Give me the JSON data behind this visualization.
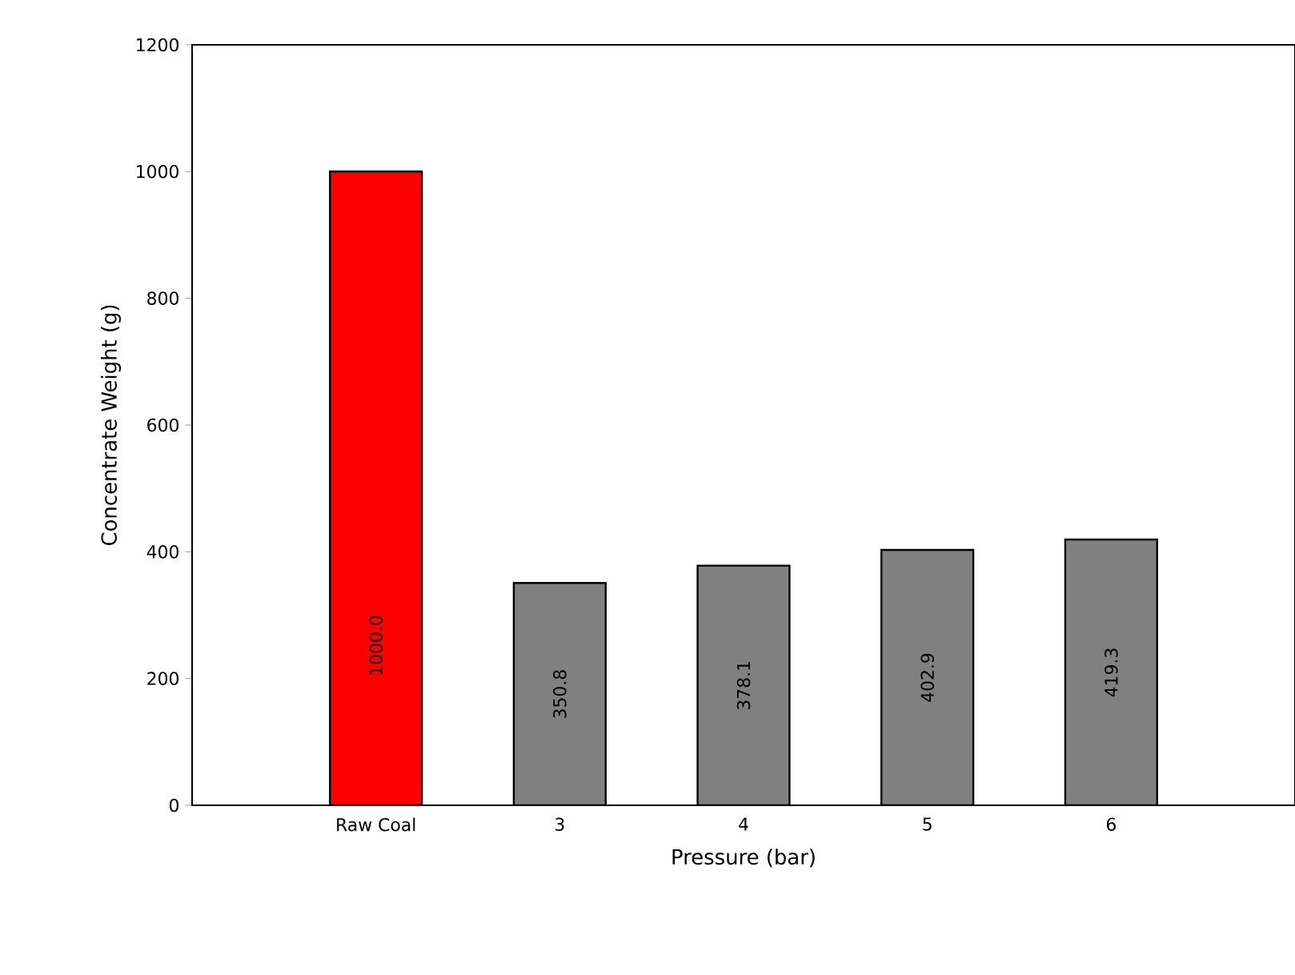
{
  "chart_data": {
    "type": "bar",
    "xlabel": "Pressure (bar)",
    "ylabel": "Concentrate Weight (g)",
    "categories": [
      "Raw Coal",
      "3",
      "4",
      "5",
      "6"
    ],
    "values": [
      1000.0,
      350.8,
      378.1,
      402.9,
      419.3
    ],
    "colors": [
      "#ff0000",
      "#808080",
      "#808080",
      "#808080",
      "#808080"
    ],
    "value_labels": [
      "1000.0",
      "350.8",
      "378.1",
      "402.9",
      "419.3"
    ],
    "ylim": [
      0,
      1200
    ],
    "yticks": [
      0,
      200,
      400,
      600,
      800,
      1000,
      1200
    ]
  }
}
